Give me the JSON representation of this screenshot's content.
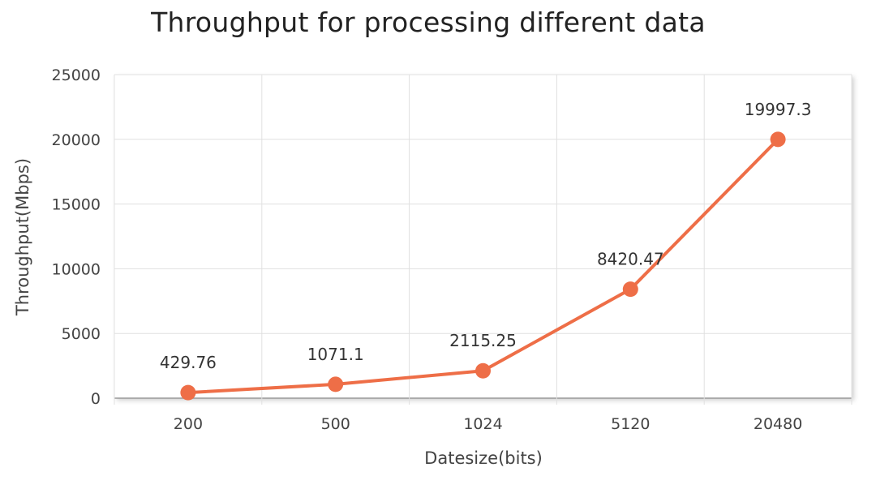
{
  "chart_data": {
    "type": "line",
    "title": "Throughput for processing different data",
    "xlabel": "Datesize(bits)",
    "ylabel": "Throughput(Mbps)",
    "categories": [
      "200",
      "500",
      "1024",
      "5120",
      "20480"
    ],
    "series": [
      {
        "name": "Throughput",
        "values": [
          429.76,
          1071.1,
          2115.25,
          8420.47,
          19997.3
        ],
        "color": "#ee6e47"
      }
    ],
    "data_labels": [
      "429.76",
      "1071.1",
      "2115.25",
      "8420.47",
      "19997.3"
    ],
    "yticks": [
      0,
      5000,
      10000,
      15000,
      20000,
      25000
    ],
    "ylim": [
      0,
      25000
    ],
    "grid": true,
    "legend": "none"
  },
  "colors": {
    "line": "#ee6e47",
    "grid": "#e0e0e0",
    "axis": "#999999"
  }
}
